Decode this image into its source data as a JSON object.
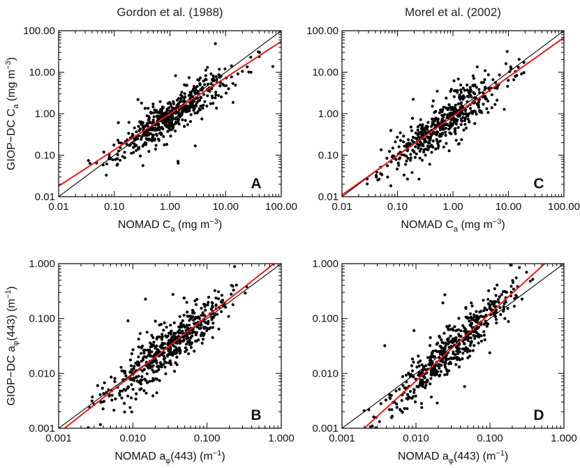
{
  "chart_data": [
    {
      "type": "scatter",
      "panel": "A",
      "title": "Gordon et al. (1988)",
      "xlabel": {
        "base": "NOMAD C",
        "sub": "a",
        "unit_pre": " (mg m",
        "sup": "−3",
        "unit_post": ")"
      },
      "ylabel": {
        "base": "GIOP−DC C",
        "sub": "a",
        "unit_pre": " (mg m",
        "sup": "−3",
        "unit_post": ")"
      },
      "x_scale": "log",
      "y_scale": "log",
      "xlim": [
        0.01,
        100
      ],
      "ylim": [
        0.01,
        100
      ],
      "xticks": [
        "0.01",
        "0.10",
        "1.00",
        "10.00",
        "100.00"
      ],
      "yticks": [
        "0.01",
        "0.10",
        "1.00",
        "10.00",
        "100.00"
      ],
      "reference_line": {
        "label": "1:1",
        "color": "#000000"
      },
      "fit_line": {
        "color": "#e31a1c",
        "points": [
          [
            0.01,
            0.018
          ],
          [
            100,
            55
          ]
        ]
      },
      "cloud": {
        "center_log": 0.0,
        "spread": 0.52,
        "scatter": 0.22,
        "slope": 0.87,
        "intercept_log": -0.05,
        "n": 520,
        "seed": 11
      }
    },
    {
      "type": "scatter",
      "panel": "C",
      "title": "Morel et al. (2002)",
      "xlabel": {
        "base": "NOMAD C",
        "sub": "a",
        "unit_pre": " (mg m",
        "sup": "−3",
        "unit_post": ")"
      },
      "ylabel": {
        "base": "",
        "sub": "",
        "unit_pre": "",
        "sup": "",
        "unit_post": ""
      },
      "x_scale": "log",
      "y_scale": "log",
      "xlim": [
        0.01,
        100
      ],
      "ylim": [
        0.01,
        100
      ],
      "xticks": [
        "0.01",
        "0.10",
        "1.00",
        "10.00",
        "100.00"
      ],
      "yticks": [
        "0.01",
        "0.10",
        "1.00",
        "10.00",
        "100.00"
      ],
      "reference_line": {
        "label": "1:1",
        "color": "#000000"
      },
      "fit_line": {
        "color": "#e31a1c",
        "points": [
          [
            0.01,
            0.011
          ],
          [
            100,
            68
          ]
        ]
      },
      "cloud": {
        "center_log": -0.15,
        "spread": 0.55,
        "scatter": 0.25,
        "slope": 0.95,
        "intercept_log": -0.08,
        "n": 520,
        "seed": 23
      }
    },
    {
      "type": "scatter",
      "panel": "B",
      "title": "",
      "xlabel": {
        "base": "NOMAD a",
        "sub": "φ",
        "unit_pre": "(443) (m",
        "sup": "−1",
        "unit_post": ")"
      },
      "ylabel": {
        "base": "GIOP−DC a",
        "sub": "φ",
        "unit_pre": "(443) (m",
        "sup": "−1",
        "unit_post": ")"
      },
      "x_scale": "log",
      "y_scale": "log",
      "xlim": [
        0.001,
        1
      ],
      "ylim": [
        0.001,
        1
      ],
      "xticks": [
        "0.001",
        "0.010",
        "0.100",
        "1.000"
      ],
      "yticks": [
        "0.001",
        "0.010",
        "0.100",
        "1.000"
      ],
      "reference_line": {
        "label": "1:1",
        "color": "#000000"
      },
      "fit_line": {
        "color": "#e31a1c",
        "points": [
          [
            0.0012,
            0.001
          ],
          [
            0.8,
            1.0
          ]
        ]
      },
      "cloud": {
        "center_log": -1.55,
        "spread": 0.42,
        "scatter": 0.22,
        "slope": 1.08,
        "intercept_log": 0.12,
        "n": 520,
        "seed": 37
      }
    },
    {
      "type": "scatter",
      "panel": "D",
      "title": "",
      "xlabel": {
        "base": "NOMAD a",
        "sub": "φ",
        "unit_pre": "(443) (m",
        "sup": "−1",
        "unit_post": ")"
      },
      "ylabel": {
        "base": "",
        "sub": "",
        "unit_pre": "",
        "sup": "",
        "unit_post": ""
      },
      "x_scale": "log",
      "y_scale": "log",
      "xlim": [
        0.001,
        1
      ],
      "ylim": [
        0.001,
        1
      ],
      "xticks": [
        "0.001",
        "0.010",
        "0.100",
        "1.000"
      ],
      "yticks": [
        "0.001",
        "0.010",
        "0.100",
        "1.000"
      ],
      "reference_line": {
        "label": "1:1",
        "color": "#000000"
      },
      "fit_line": {
        "color": "#e31a1c",
        "points": [
          [
            0.002,
            0.001
          ],
          [
            0.55,
            1.0
          ]
        ]
      },
      "cloud": {
        "center_log": -1.55,
        "spread": 0.45,
        "scatter": 0.2,
        "slope": 1.25,
        "intercept_log": 0.35,
        "n": 520,
        "seed": 53
      }
    }
  ]
}
